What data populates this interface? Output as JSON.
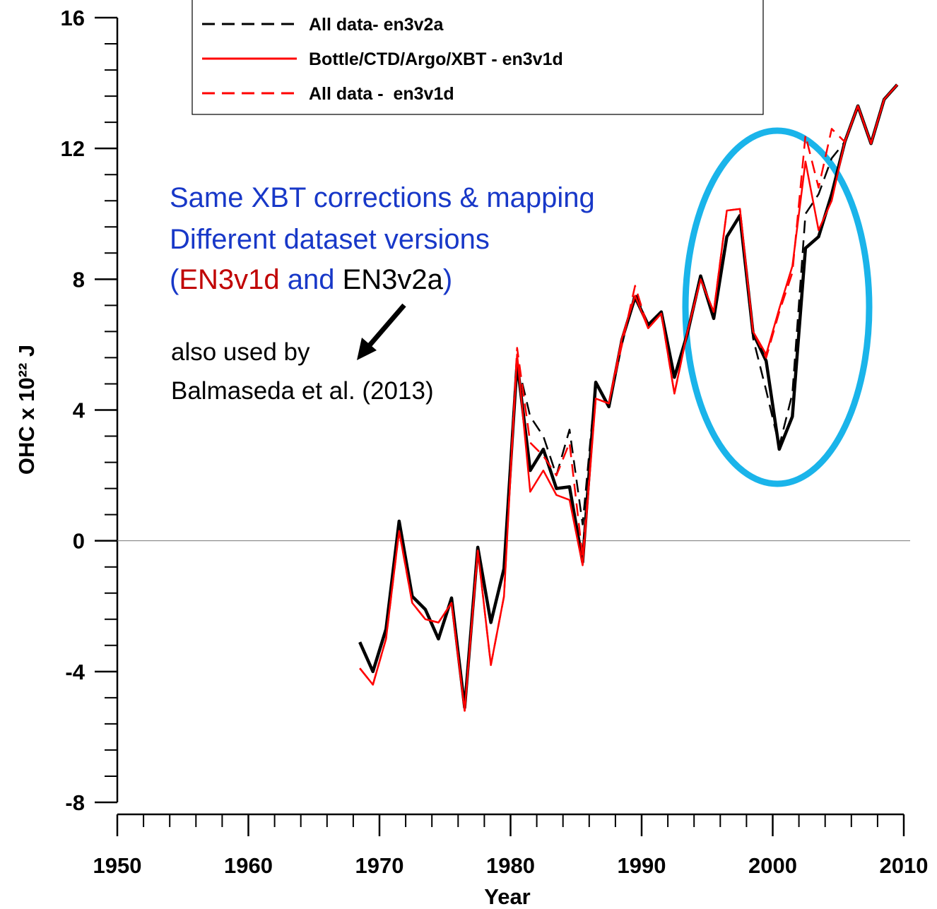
{
  "chart_data": {
    "type": "line",
    "x_label": "Year",
    "y_label": "OHC x 10²² J",
    "xlim": [
      1950,
      2010
    ],
    "xticks": [
      1950,
      1960,
      1970,
      1980,
      1990,
      2000,
      2010
    ],
    "xminorticks": [
      1952,
      1954,
      1956,
      1958,
      1962,
      1964,
      1966,
      1968,
      1972,
      1974,
      1976,
      1978,
      1982,
      1984,
      1986,
      1988,
      1992,
      1994,
      1996,
      1998,
      2002,
      2004,
      2006,
      2008
    ],
    "ylim": [
      -8,
      16
    ],
    "yticks": [
      -8,
      -4,
      0,
      4,
      8,
      12,
      16
    ],
    "yminorticks": [
      -7.2,
      -6.4,
      -5.6,
      -4.8,
      -3.2,
      -2.4,
      -1.6,
      -0.8,
      0.8,
      1.6,
      2.4,
      3.2,
      4.8,
      5.6,
      6.4,
      7.2,
      8.8,
      9.6,
      10.4,
      11.2,
      12.8,
      13.6,
      14.4,
      15.2
    ],
    "zero_line": true,
    "x": [
      1968.5,
      1969.5,
      1970.5,
      1971.5,
      1972.5,
      1973.5,
      1974.5,
      1975.5,
      1976.5,
      1977.5,
      1978.5,
      1979.5,
      1980.5,
      1981.5,
      1982.5,
      1983.5,
      1984.5,
      1985.5,
      1986.5,
      1987.5,
      1988.5,
      1989.5,
      1990.5,
      1991.5,
      1992.5,
      1993.5,
      1994.5,
      1995.5,
      1996.5,
      1997.5,
      1998.5,
      1999.5,
      2000.5,
      2001.5,
      2002.5,
      2003.5,
      2004.5,
      2005.5,
      2006.5,
      2007.5,
      2008.5,
      2009.5
    ],
    "series": [
      {
        "color": "#000000",
        "dash": "solid",
        "width": 4.5,
        "values": [
          -3.1,
          -4.0,
          -2.7,
          0.6,
          -1.7,
          -2.1,
          -3.0,
          -1.75,
          -5.1,
          -0.2,
          -2.5,
          -0.85,
          5.45,
          2.15,
          2.8,
          1.6,
          1.65,
          -0.65,
          4.85,
          4.1,
          6.15,
          7.45,
          6.6,
          7.0,
          5.0,
          6.35,
          8.1,
          6.8,
          9.3,
          9.95,
          6.35,
          5.5,
          2.8,
          3.8,
          8.95,
          9.3,
          10.6,
          12.2,
          13.3,
          12.15,
          13.5,
          13.95
        ]
      },
      {
        "name": "All data- en3v2a",
        "color": "#000000",
        "dash": "dashed",
        "width": 2.5,
        "values": [
          -3.1,
          -4.0,
          -2.7,
          0.6,
          -1.7,
          -2.1,
          -3.0,
          -1.75,
          -5.1,
          -0.2,
          -2.5,
          -0.85,
          5.5,
          3.8,
          3.2,
          2.0,
          3.4,
          0.5,
          4.85,
          4.1,
          6.0,
          7.6,
          6.6,
          7.0,
          5.0,
          6.35,
          8.0,
          6.9,
          9.3,
          9.95,
          6.2,
          4.6,
          2.9,
          4.5,
          10.0,
          10.6,
          11.7,
          12.2,
          13.3,
          12.15,
          13.5,
          13.95
        ]
      },
      {
        "name": "Bottle/CTD/Argo/XBT - en3v1d",
        "color": "#ff0000",
        "dash": "solid",
        "width": 2.5,
        "values": [
          -3.9,
          -4.4,
          -3.0,
          0.3,
          -1.9,
          -2.4,
          -2.5,
          -1.9,
          -5.2,
          -0.3,
          -3.8,
          -1.7,
          5.7,
          1.5,
          2.15,
          1.4,
          1.25,
          -0.75,
          4.35,
          4.2,
          6.2,
          7.5,
          6.5,
          6.95,
          4.5,
          6.4,
          8.0,
          7.0,
          10.1,
          10.15,
          6.4,
          5.7,
          7.1,
          8.4,
          11.6,
          9.5,
          10.4,
          12.2,
          13.3,
          12.15,
          13.5,
          13.95
        ]
      },
      {
        "name": "All data -  en3v1d",
        "color": "#ff0000",
        "dash": "dashed",
        "width": 2.5,
        "values": [
          -3.9,
          -4.4,
          -3.0,
          0.3,
          -1.9,
          -2.4,
          -2.5,
          -1.9,
          -5.2,
          -0.3,
          -3.8,
          -1.7,
          5.9,
          3.0,
          2.6,
          2.0,
          3.0,
          -0.5,
          4.35,
          4.2,
          6.0,
          7.8,
          6.5,
          6.95,
          4.5,
          6.4,
          8.0,
          7.0,
          10.1,
          10.15,
          6.4,
          5.6,
          7.0,
          8.2,
          12.4,
          10.8,
          12.6,
          12.2,
          13.3,
          12.15,
          13.5,
          13.95
        ]
      }
    ],
    "annotation_lines": [
      "Same XBT corrections & mapping",
      "Different dataset versions"
    ],
    "annotation_parts": [
      "(",
      "EN3v1d",
      " and ",
      "EN3v2a",
      ")"
    ],
    "note_lines": [
      "also used by",
      "Balmaseda et al. (2013)"
    ]
  }
}
